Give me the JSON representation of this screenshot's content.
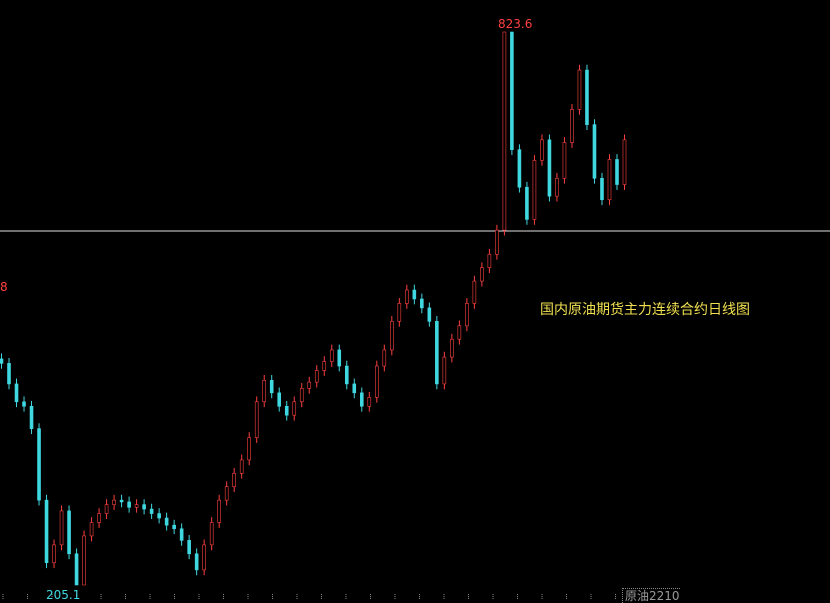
{
  "chart_data": {
    "type": "candlestick",
    "title": "国内原油期货主力连续合约日线图",
    "symbol": "原油2210",
    "max_label": "823.6",
    "min_label": "205.1",
    "left_partial_label": "8",
    "reference_line": 601,
    "ylim": [
      205.1,
      823.6
    ],
    "closes": [
      453,
      430,
      410,
      405,
      380,
      300,
      230,
      250,
      288,
      240,
      205.1,
      260,
      275,
      285,
      295,
      300,
      298,
      292,
      295,
      290,
      285,
      280,
      272,
      268,
      255,
      240,
      222,
      250,
      275,
      300,
      315,
      330,
      345,
      370,
      410,
      434,
      420,
      405,
      395,
      410,
      425,
      432,
      445,
      455,
      468,
      450,
      430,
      420,
      405,
      415,
      450,
      468,
      500,
      520,
      535,
      525,
      515,
      500,
      430,
      460,
      480,
      495,
      520,
      545,
      560,
      575,
      602,
      823.6,
      692,
      650,
      614,
      680,
      703,
      640,
      660,
      700,
      737,
      781,
      720,
      660,
      636,
      681,
      653,
      703
    ],
    "colors": {
      "up": "#ff4040",
      "down": "#40d8e0",
      "background": "#000000",
      "line": "#e0e0e0"
    }
  }
}
